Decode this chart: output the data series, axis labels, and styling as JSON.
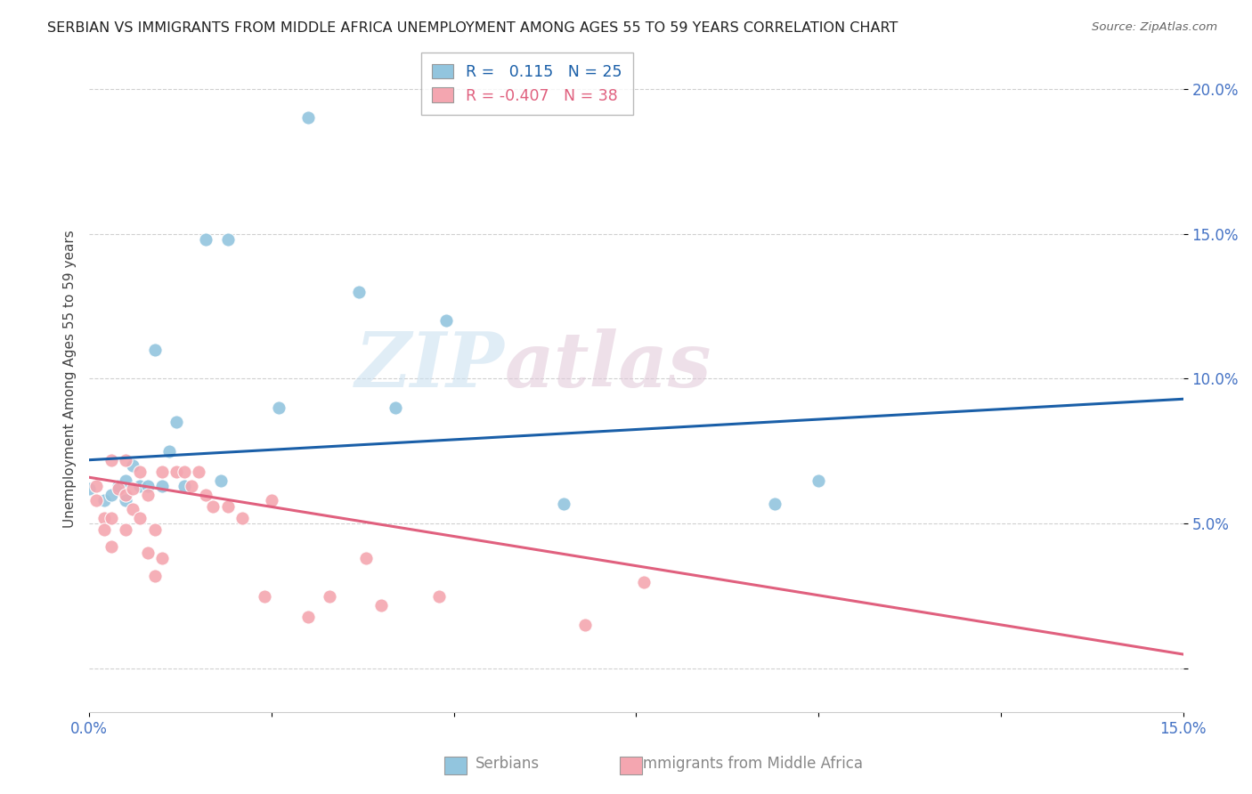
{
  "title": "SERBIAN VS IMMIGRANTS FROM MIDDLE AFRICA UNEMPLOYMENT AMONG AGES 55 TO 59 YEARS CORRELATION CHART",
  "source": "Source: ZipAtlas.com",
  "ylabel": "Unemployment Among Ages 55 to 59 years",
  "xlim": [
    0.0,
    0.15
  ],
  "ylim": [
    -0.015,
    0.215
  ],
  "legend_serbian_R": "0.115",
  "legend_serbian_N": "25",
  "legend_immigrants_R": "-0.407",
  "legend_immigrants_N": "38",
  "serbian_color": "#92c5de",
  "immigrants_color": "#f4a6b0",
  "trend_serbian_color": "#1a5fa8",
  "trend_immigrants_color": "#e0607e",
  "watermark_color": "#d8e8f0",
  "watermark_color2": "#e8d8e0",
  "serbian_points": [
    [
      0.0,
      0.062
    ],
    [
      0.002,
      0.058
    ],
    [
      0.003,
      0.06
    ],
    [
      0.004,
      0.063
    ],
    [
      0.005,
      0.065
    ],
    [
      0.005,
      0.058
    ],
    [
      0.006,
      0.07
    ],
    [
      0.007,
      0.063
    ],
    [
      0.008,
      0.063
    ],
    [
      0.009,
      0.11
    ],
    [
      0.01,
      0.063
    ],
    [
      0.011,
      0.075
    ],
    [
      0.012,
      0.085
    ],
    [
      0.013,
      0.063
    ],
    [
      0.016,
      0.148
    ],
    [
      0.019,
      0.148
    ],
    [
      0.018,
      0.065
    ],
    [
      0.026,
      0.09
    ],
    [
      0.03,
      0.19
    ],
    [
      0.037,
      0.13
    ],
    [
      0.042,
      0.09
    ],
    [
      0.049,
      0.12
    ],
    [
      0.065,
      0.057
    ],
    [
      0.094,
      0.057
    ],
    [
      0.1,
      0.065
    ]
  ],
  "immigrants_points": [
    [
      0.001,
      0.063
    ],
    [
      0.001,
      0.058
    ],
    [
      0.002,
      0.052
    ],
    [
      0.002,
      0.048
    ],
    [
      0.003,
      0.072
    ],
    [
      0.003,
      0.052
    ],
    [
      0.003,
      0.042
    ],
    [
      0.004,
      0.062
    ],
    [
      0.005,
      0.06
    ],
    [
      0.005,
      0.072
    ],
    [
      0.005,
      0.048
    ],
    [
      0.006,
      0.062
    ],
    [
      0.006,
      0.055
    ],
    [
      0.007,
      0.052
    ],
    [
      0.007,
      0.068
    ],
    [
      0.008,
      0.06
    ],
    [
      0.008,
      0.04
    ],
    [
      0.009,
      0.032
    ],
    [
      0.009,
      0.048
    ],
    [
      0.01,
      0.068
    ],
    [
      0.01,
      0.038
    ],
    [
      0.012,
      0.068
    ],
    [
      0.013,
      0.068
    ],
    [
      0.014,
      0.063
    ],
    [
      0.015,
      0.068
    ],
    [
      0.016,
      0.06
    ],
    [
      0.017,
      0.056
    ],
    [
      0.019,
      0.056
    ],
    [
      0.021,
      0.052
    ],
    [
      0.024,
      0.025
    ],
    [
      0.025,
      0.058
    ],
    [
      0.03,
      0.018
    ],
    [
      0.033,
      0.025
    ],
    [
      0.038,
      0.038
    ],
    [
      0.04,
      0.022
    ],
    [
      0.048,
      0.025
    ],
    [
      0.068,
      0.015
    ],
    [
      0.076,
      0.03
    ]
  ],
  "background_color": "#ffffff",
  "grid_color": "#d0d0d0"
}
